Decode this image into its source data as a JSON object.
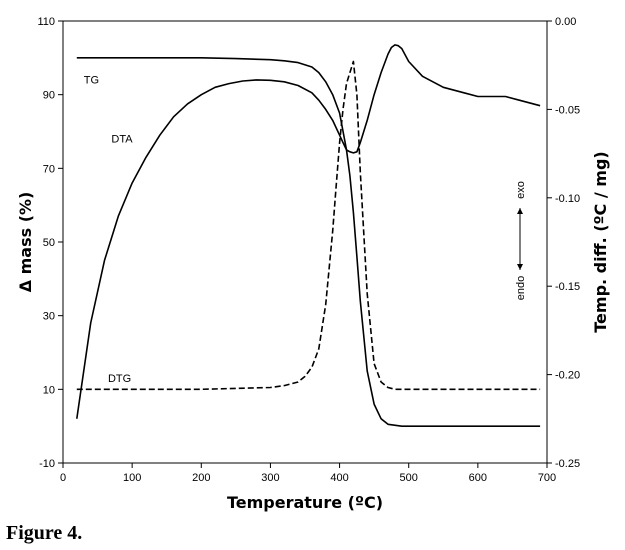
{
  "caption": "Figure 4.",
  "chart_data": {
    "type": "line",
    "xlabel": "Temperature (ºC)",
    "ylabel_left": "Δ mass (%)",
    "ylabel_right": "Temp. diff. (ºC / mg)",
    "xlim": [
      0,
      700
    ],
    "ylim_left": [
      -10,
      110
    ],
    "ylim_right": [
      -0.25,
      0.0
    ],
    "x_ticks": [
      "0",
      "100",
      "200",
      "300",
      "400",
      "500",
      "600",
      "700"
    ],
    "y_left_ticks": [
      "-10",
      "10",
      "30",
      "50",
      "70",
      "90",
      "110"
    ],
    "y_right_ticks": [
      "-0.25",
      "-0.20",
      "-0.15",
      "-0.10",
      "-0.05",
      "0.00"
    ],
    "annotation": {
      "endo": "endo",
      "exo": "exo"
    },
    "grid": false,
    "series": [
      {
        "name": "TG",
        "axis": "left",
        "style": "solid",
        "x": [
          20,
          100,
          200,
          250,
          300,
          320,
          340,
          360,
          370,
          380,
          390,
          400,
          410,
          415,
          420,
          425,
          430,
          440,
          450,
          460,
          470,
          490,
          520,
          600,
          690
        ],
        "y": [
          100,
          100,
          100,
          99.8,
          99.5,
          99.2,
          98.7,
          97.5,
          96,
          93.5,
          90,
          85,
          75,
          68,
          58,
          46,
          34,
          15,
          6,
          2,
          0.5,
          0,
          0,
          0,
          0
        ]
      },
      {
        "name": "DTA",
        "axis": "left",
        "style": "solid",
        "x": [
          20,
          40,
          60,
          80,
          100,
          120,
          140,
          160,
          180,
          200,
          220,
          240,
          260,
          280,
          300,
          320,
          340,
          360,
          370,
          380,
          390,
          400,
          405,
          410,
          415,
          420,
          425,
          430,
          440,
          450,
          460,
          470,
          475,
          480,
          485,
          490,
          500,
          520,
          550,
          580,
          600,
          620,
          640,
          660,
          690
        ],
        "y": [
          2,
          28,
          45,
          57,
          66,
          73,
          79,
          84,
          87.5,
          90,
          92,
          93,
          93.7,
          94,
          93.9,
          93.5,
          92.5,
          90.5,
          88.5,
          86,
          83,
          79,
          77,
          75,
          74.5,
          74.2,
          74.5,
          77,
          83,
          90,
          96,
          101,
          102.8,
          103.5,
          103.3,
          102.5,
          99,
          95,
          92,
          90.5,
          89.5,
          89.5,
          89.5,
          88.5,
          87
        ]
      },
      {
        "name": "DTG",
        "axis": "left",
        "style": "dashed",
        "x": [
          20,
          100,
          200,
          300,
          320,
          340,
          350,
          360,
          370,
          380,
          390,
          395,
          400,
          405,
          410,
          415,
          420,
          425,
          430,
          440,
          450,
          460,
          470,
          480,
          500,
          600,
          690
        ],
        "y": [
          10,
          10,
          10,
          10.5,
          11,
          12,
          13.5,
          16,
          21,
          33,
          53,
          65,
          77,
          86,
          93,
          96,
          99,
          90,
          69,
          36,
          17,
          12,
          10.5,
          10,
          10,
          10,
          10
        ]
      }
    ],
    "curve_labels": {
      "TG": "TG",
      "DTA": "DTA",
      "DTG": "DTG"
    }
  }
}
